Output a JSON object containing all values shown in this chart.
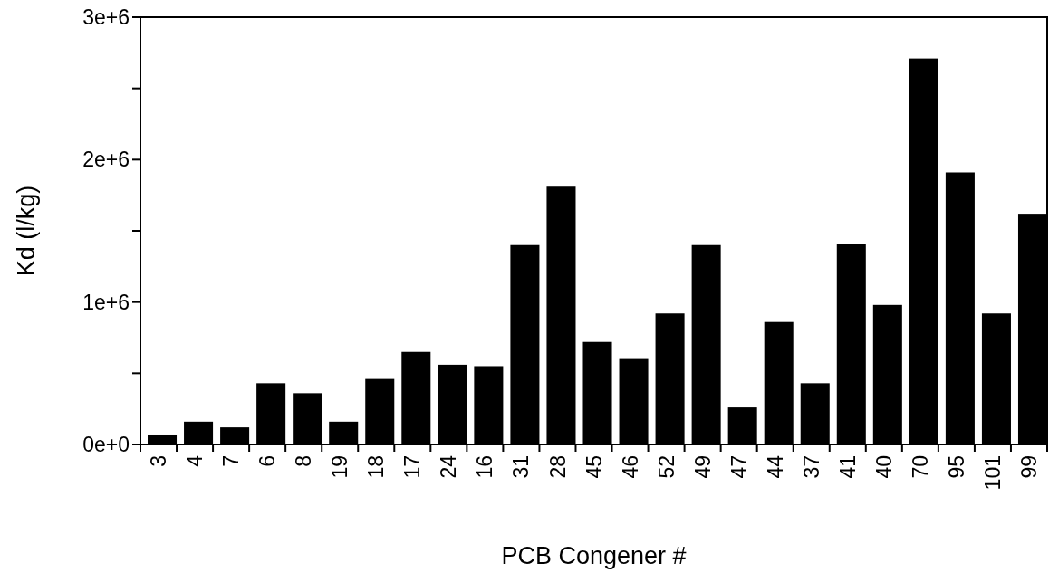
{
  "chart_data": {
    "type": "bar",
    "xlabel": "PCB Congener #",
    "ylabel": "Kd (l/kg)",
    "categories": [
      "3",
      "4",
      "7",
      "6",
      "8",
      "19",
      "18",
      "17",
      "24",
      "16",
      "31",
      "28",
      "45",
      "46",
      "52",
      "49",
      "47",
      "44",
      "37",
      "41",
      "40",
      "70",
      "95",
      "101",
      "99"
    ],
    "values": [
      70000,
      160000,
      120000,
      430000,
      360000,
      160000,
      460000,
      650000,
      560000,
      550000,
      1400000,
      1810000,
      720000,
      600000,
      920000,
      1400000,
      260000,
      860000,
      430000,
      1410000,
      980000,
      2710000,
      1910000,
      920000,
      1620000
    ],
    "color": "#000000",
    "ylim": [
      0,
      3000000
    ],
    "yticks": [
      {
        "value": 0,
        "label": "0e+0"
      },
      {
        "value": 500000,
        "label": null
      },
      {
        "value": 1000000,
        "label": "1e+6"
      },
      {
        "value": 1500000,
        "label": null
      },
      {
        "value": 2000000,
        "label": "2e+6"
      },
      {
        "value": 2500000,
        "label": null
      },
      {
        "value": 3000000,
        "label": "3e+6"
      }
    ],
    "grid": false
  }
}
